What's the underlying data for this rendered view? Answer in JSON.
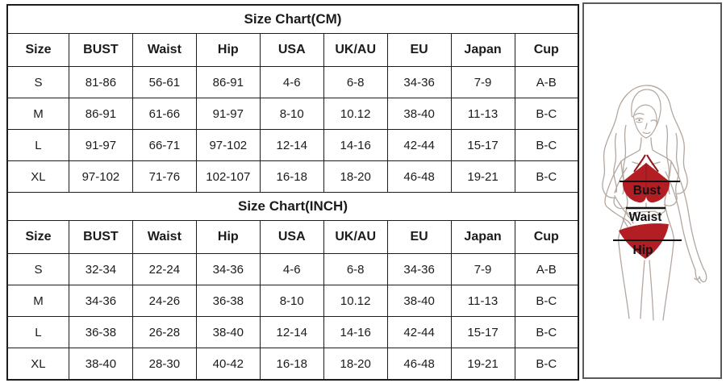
{
  "tables": [
    {
      "title": "Size Chart(CM)",
      "columns": [
        "Size",
        "BUST",
        "Waist",
        "Hip",
        "USA",
        "UK/AU",
        "EU",
        "Japan",
        "Cup"
      ],
      "rows": [
        [
          "S",
          "81-86",
          "56-61",
          "86-91",
          "4-6",
          "6-8",
          "34-36",
          "7-9",
          "A-B"
        ],
        [
          "M",
          "86-91",
          "61-66",
          "91-97",
          "8-10",
          "10.12",
          "38-40",
          "11-13",
          "B-C"
        ],
        [
          "L",
          "91-97",
          "66-71",
          "97-102",
          "12-14",
          "14-16",
          "42-44",
          "15-17",
          "B-C"
        ],
        [
          "XL",
          "97-102",
          "71-76",
          "102-107",
          "16-18",
          "18-20",
          "46-48",
          "19-21",
          "B-C"
        ]
      ]
    },
    {
      "title": "Size Chart(INCH)",
      "columns": [
        "Size",
        "BUST",
        "Waist",
        "Hip",
        "USA",
        "UK/AU",
        "EU",
        "Japan",
        "Cup"
      ],
      "rows": [
        [
          "S",
          "32-34",
          "22-24",
          "34-36",
          "4-6",
          "6-8",
          "34-36",
          "7-9",
          "A-B"
        ],
        [
          "M",
          "34-36",
          "24-26",
          "36-38",
          "8-10",
          "10.12",
          "38-40",
          "11-13",
          "B-C"
        ],
        [
          "L",
          "36-38",
          "26-28",
          "38-40",
          "12-14",
          "14-16",
          "42-44",
          "15-17",
          "B-C"
        ],
        [
          "XL",
          "38-40",
          "28-30",
          "40-42",
          "16-18",
          "18-20",
          "46-48",
          "19-21",
          "B-C"
        ]
      ]
    }
  ],
  "figure": {
    "labels": {
      "bust": "Bust",
      "waist": "Waist",
      "hip": "Hip"
    },
    "colors": {
      "bikini_red": "#b21e23",
      "bikini_red_dark": "#8f171c",
      "outline": "#b3a79f",
      "measure_line": "#111111",
      "box_border": "#595959",
      "table_border": "#1c1c1c"
    }
  }
}
